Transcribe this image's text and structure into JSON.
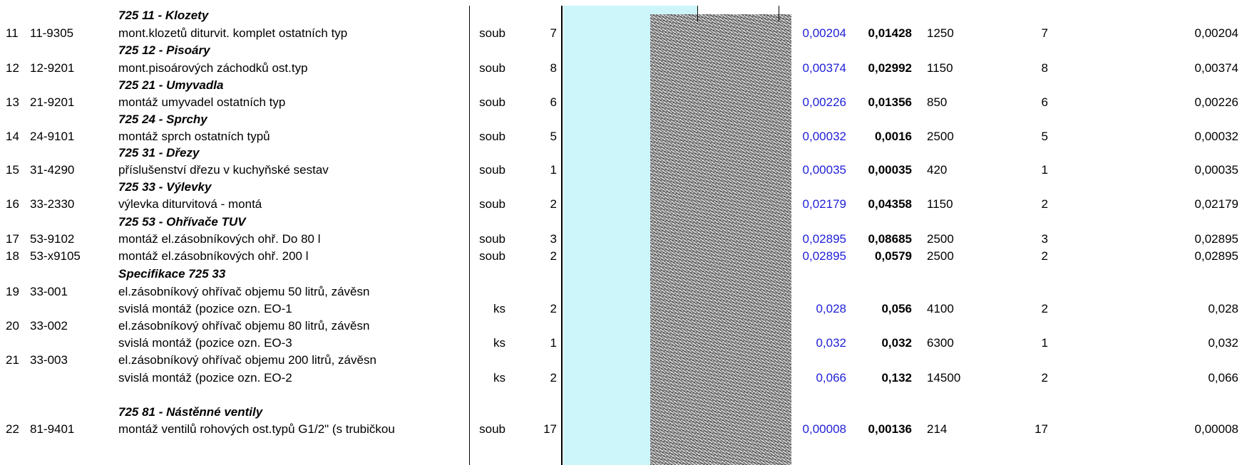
{
  "sections": [
    {
      "title": "725 11 - Klozety"
    },
    {
      "title": "725 12 - Pisoáry"
    },
    {
      "title": "725 21 - Umyvadla"
    },
    {
      "title": "725 24 - Sprchy"
    },
    {
      "title": "725 31 - Dřezy"
    },
    {
      "title": "725 33 - Výlevky"
    },
    {
      "title": "725 53 - Ohřívače TUV"
    },
    {
      "title": "Specifikace 725 33"
    },
    {
      "title": "725 81 - Nástěnné ventily"
    }
  ],
  "items": [
    {
      "idx": "11",
      "code": "11-9305",
      "desc": "mont.klozetů diturvit. komplet ostatních typ",
      "unit": "soub",
      "qty": "7",
      "rate": "0,00204",
      "total": "0,01428",
      "price": "1250",
      "qty2": "7",
      "rate2": "0,00204"
    },
    {
      "idx": "12",
      "code": "12-9201",
      "desc": "mont.pisoárových záchodků ost.typ",
      "unit": "soub",
      "qty": "8",
      "rate": "0,00374",
      "total": "0,02992",
      "price": "1150",
      "qty2": "8",
      "rate2": "0,00374"
    },
    {
      "idx": "13",
      "code": "21-9201",
      "desc": "montáž umyvadel ostatních typ",
      "unit": "soub",
      "qty": "6",
      "rate": "0,00226",
      "total": "0,01356",
      "price": "850",
      "qty2": "6",
      "rate2": "0,00226"
    },
    {
      "idx": "14",
      "code": "24-9101",
      "desc": "montáž sprch ostatních typů",
      "unit": "soub",
      "qty": "5",
      "rate": "0,00032",
      "total": "0,0016",
      "price": "2500",
      "qty2": "5",
      "rate2": "0,00032"
    },
    {
      "idx": "15",
      "code": "31-4290",
      "desc": "příslušenství dřezu v kuchyňské sestav",
      "unit": "soub",
      "qty": "1",
      "rate": "0,00035",
      "total": "0,00035",
      "price": "420",
      "qty2": "1",
      "rate2": "0,00035"
    },
    {
      "idx": "16",
      "code": "33-2330",
      "desc": "výlevka diturvitová - montá",
      "unit": "soub",
      "qty": "2",
      "rate": "0,02179",
      "total": "0,04358",
      "price": "1150",
      "qty2": "2",
      "rate2": "0,02179"
    },
    {
      "idx": "17",
      "code": "53-9102",
      "desc": "montáž el.zásobníkových ohř. Do 80 l",
      "unit": "soub",
      "qty": "3",
      "rate": "0,02895",
      "total": "0,08685",
      "price": "2500",
      "qty2": "3",
      "rate2": "0,02895"
    },
    {
      "idx": "18",
      "code": "53-x9105",
      "desc": "montáž el.zásobníkových ohř. 200 l",
      "unit": "soub",
      "qty": "2",
      "rate": "0,02895",
      "total": "0,0579",
      "price": "2500",
      "qty2": "2",
      "rate2": "0,02895"
    },
    {
      "idx": "19",
      "code": "33-001",
      "desc": "el.zásobníkový ohřívač objemu 50 litrů, závěsn",
      "desc2": "svislá montáž (pozice ozn. EO-1",
      "unit": "ks",
      "qty": "2",
      "rate": "0,028",
      "total": "0,056",
      "price": "4100",
      "qty2": "2",
      "rate2": "0,028"
    },
    {
      "idx": "20",
      "code": "33-002",
      "desc": "el.zásobníkový ohřívač objemu 80 litrů, závěsn",
      "desc2": "svislá montáž (pozice ozn. EO-3",
      "unit": "ks",
      "qty": "1",
      "rate": "0,032",
      "total": "0,032",
      "price": "6300",
      "qty2": "1",
      "rate2": "0,032"
    },
    {
      "idx": "21",
      "code": "33-003",
      "desc": "el.zásobníkový ohřívač objemu 200 litrů, závěsn",
      "desc2": "svislá montáž (pozice ozn. EO-2",
      "unit": "ks",
      "qty": "2",
      "rate": "0,066",
      "total": "0,132",
      "price": "14500",
      "qty2": "2",
      "rate2": "0,066"
    },
    {
      "idx": "22",
      "code": "81-9401",
      "desc": "montáž ventilů rohových ost.typů G1/2\" (s trubičkou",
      "unit": "soub",
      "qty": "17",
      "rate": "0,00008",
      "total": "0,00136",
      "price": "214",
      "qty2": "17",
      "rate2": "0,00008"
    }
  ],
  "colors": {
    "rate_text": "#1f1fd8",
    "highlight_band": "#ccf6fa"
  }
}
